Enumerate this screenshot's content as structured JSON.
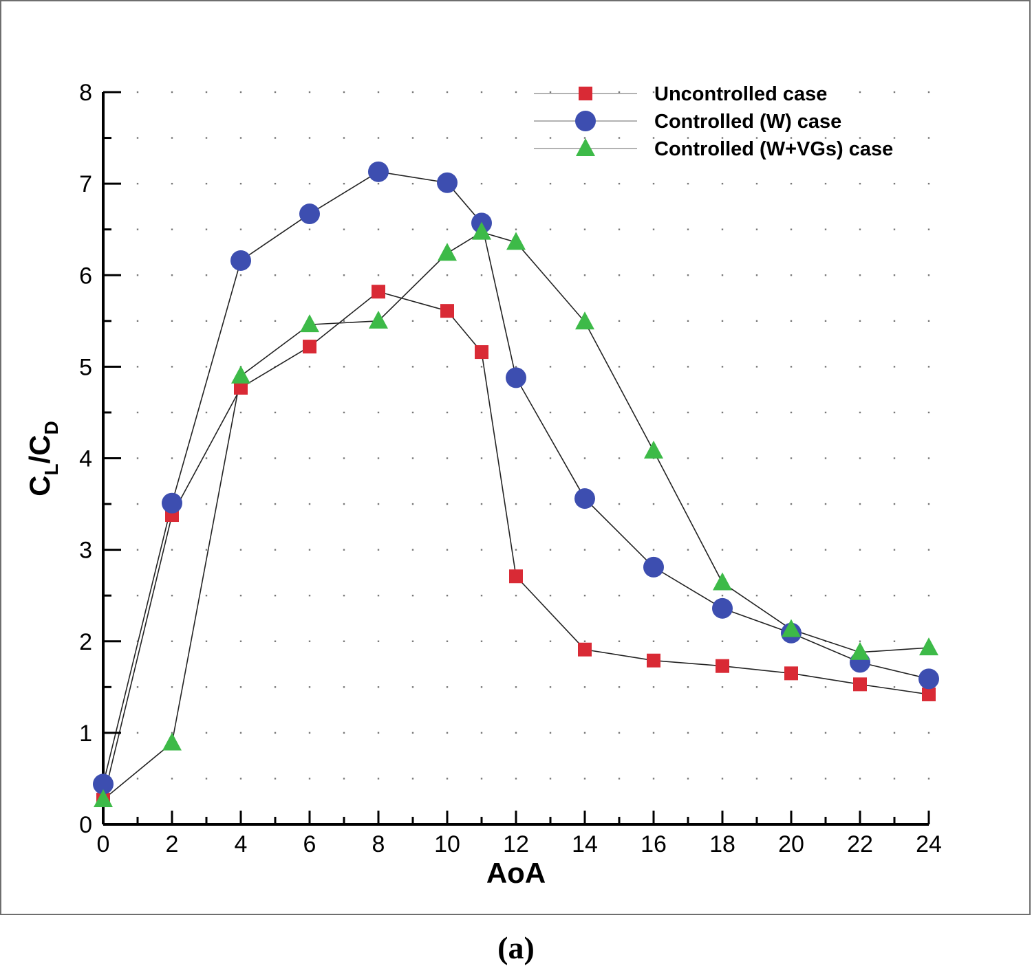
{
  "chart_data": {
    "type": "line",
    "title": "",
    "xlabel": "AoA",
    "ylabel": "C_L/C_D",
    "ylabel_parts": {
      "c1": "C",
      "sub1": "L",
      "slash": "/",
      "c2": "C",
      "sub2": "D"
    },
    "xlim": [
      0,
      24
    ],
    "ylim": [
      0,
      8
    ],
    "x_ticks": [
      0,
      2,
      4,
      6,
      8,
      10,
      12,
      14,
      16,
      18,
      20,
      22,
      24
    ],
    "y_ticks": [
      0,
      1,
      2,
      3,
      4,
      5,
      6,
      7,
      8
    ],
    "grid": "dotted",
    "legend_position": "top-right",
    "series": [
      {
        "name": "Uncontrolled case",
        "marker": "square",
        "color": "#d92a35",
        "x": [
          0,
          2,
          4,
          6,
          8,
          10,
          11,
          12,
          14,
          16,
          18,
          20,
          22,
          24
        ],
        "y": [
          0.27,
          3.38,
          4.77,
          5.22,
          5.82,
          5.61,
          5.16,
          2.71,
          1.91,
          1.79,
          1.73,
          1.65,
          1.53,
          1.42
        ]
      },
      {
        "name": "Controlled (W) case",
        "marker": "circle",
        "color": "#3d4eb0",
        "x": [
          0,
          2,
          4,
          6,
          8,
          10,
          11,
          12,
          14,
          16,
          18,
          20,
          22,
          24
        ],
        "y": [
          0.44,
          3.51,
          6.16,
          6.67,
          7.13,
          7.01,
          6.57,
          4.88,
          3.56,
          2.81,
          2.36,
          2.09,
          1.77,
          1.59
        ]
      },
      {
        "name": "Controlled (W+VGs) case",
        "marker": "triangle",
        "color": "#3dba48",
        "x": [
          0,
          2,
          4,
          6,
          8,
          10,
          11,
          12,
          14,
          16,
          18,
          20,
          22,
          24
        ],
        "y": [
          0.27,
          0.89,
          4.9,
          5.46,
          5.5,
          6.24,
          6.47,
          6.36,
          5.49,
          4.08,
          2.64,
          2.13,
          1.88,
          1.93
        ]
      }
    ]
  },
  "caption": "(a)"
}
